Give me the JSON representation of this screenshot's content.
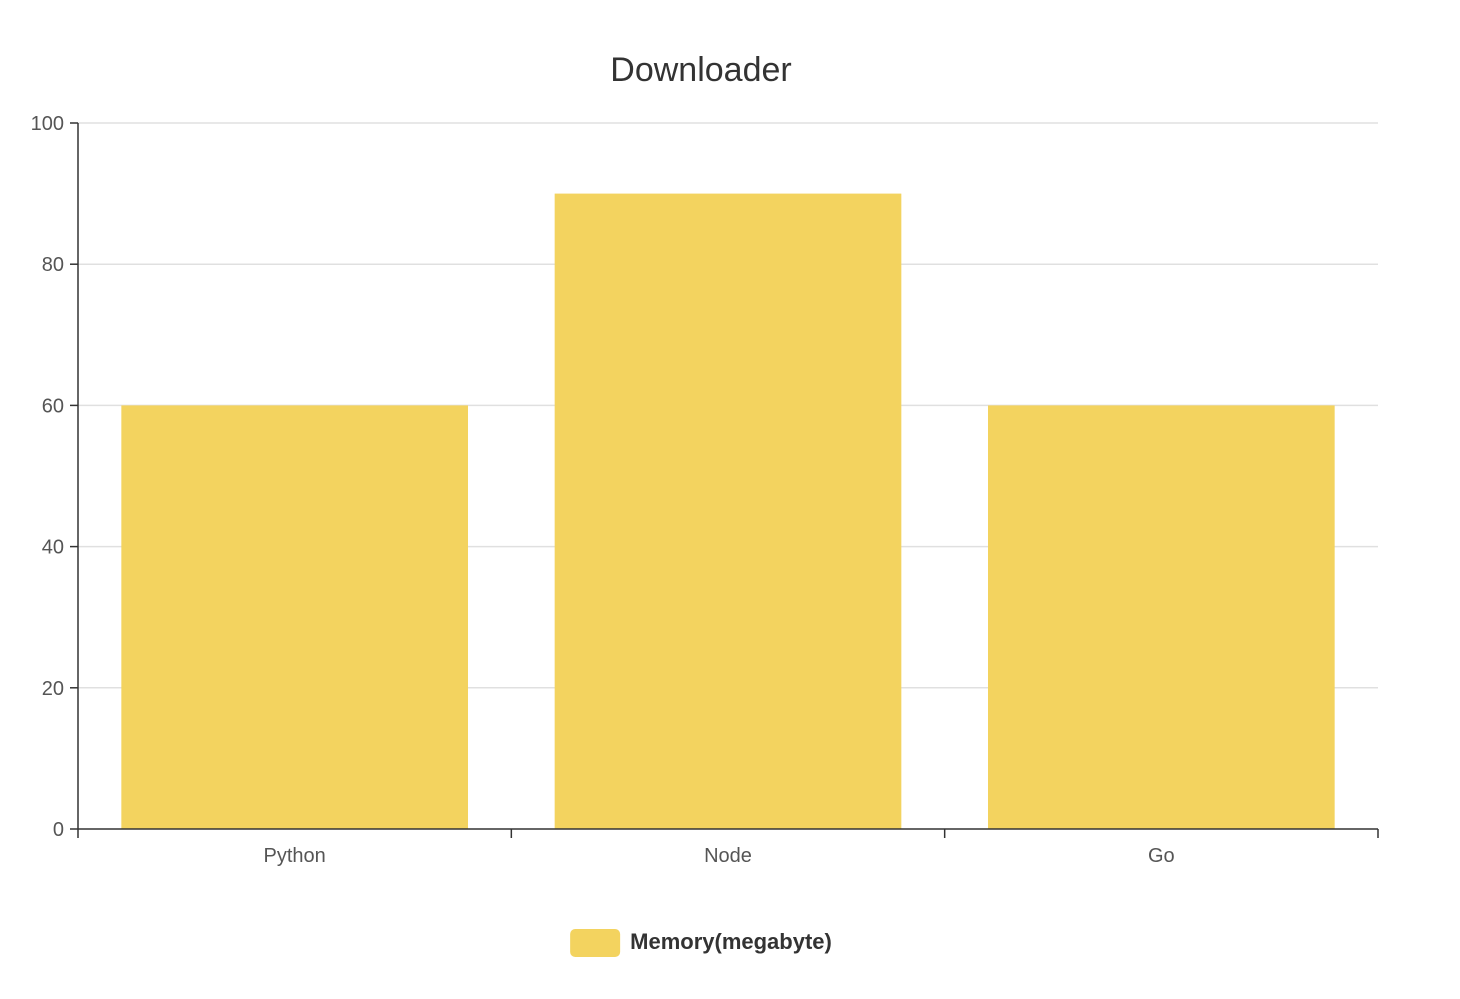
{
  "chart_data": {
    "type": "bar",
    "title": "Downloader",
    "categories": [
      "Python",
      "Node",
      "Go"
    ],
    "series": [
      {
        "name": "Memory(megabyte)",
        "values": [
          60,
          90,
          60
        ],
        "color": "#f3d35f"
      }
    ],
    "ylim": [
      0,
      100
    ],
    "yticks": [
      0,
      20,
      40,
      60,
      80,
      100
    ],
    "grid": true,
    "legend_position": "bottom-center",
    "colors": {
      "axis": "#333333",
      "grid": "#e0e0e0",
      "tick_text": "#555555",
      "title_text": "#333333"
    }
  }
}
